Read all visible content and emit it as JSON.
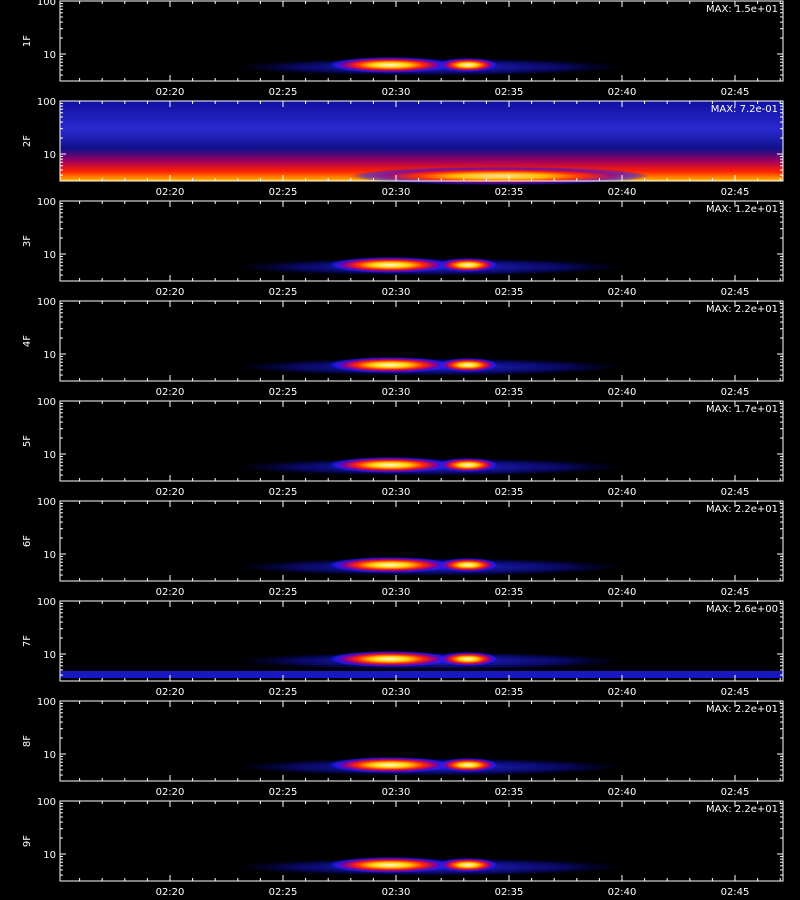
{
  "panels": [
    {
      "label": "1F",
      "max": "MAX: 1.5e+01"
    },
    {
      "label": "2F",
      "max": "MAX: 7.2e-01"
    },
    {
      "label": "3F",
      "max": "MAX: 1.2e+01"
    },
    {
      "label": "4F",
      "max": "MAX: 2.2e+01"
    },
    {
      "label": "5F",
      "max": "MAX: 1.7e+01"
    },
    {
      "label": "6F",
      "max": "MAX: 2.2e+01"
    },
    {
      "label": "7F",
      "max": "MAX: 2.6e+00"
    },
    {
      "label": "8F",
      "max": "MAX: 2.2e+01"
    },
    {
      "label": "9F",
      "max": "MAX: 2.2e+01"
    }
  ],
  "x_ticks": [
    "02:20",
    "02:25",
    "02:30",
    "02:35",
    "02:40",
    "02:45"
  ],
  "y_ticks": [
    "100",
    "10"
  ]
}
